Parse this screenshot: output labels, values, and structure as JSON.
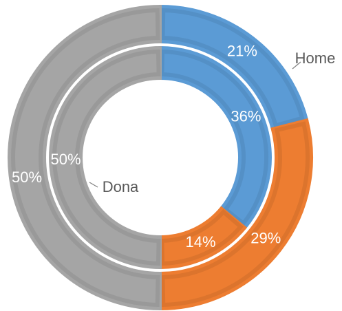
{
  "chart_data": {
    "type": "doughnut",
    "categories": [
      "Home",
      null,
      "Dona"
    ],
    "colors": [
      "#5b9bd5",
      "#ed7d31",
      "#a5a5a5"
    ],
    "series": [
      {
        "values": [
          21,
          29,
          50
        ],
        "value_labels": [
          "21%",
          "29%",
          "50%"
        ]
      },
      {
        "values": [
          36,
          14,
          50
        ],
        "value_labels": [
          "36%",
          "14%",
          "50%"
        ]
      }
    ]
  }
}
